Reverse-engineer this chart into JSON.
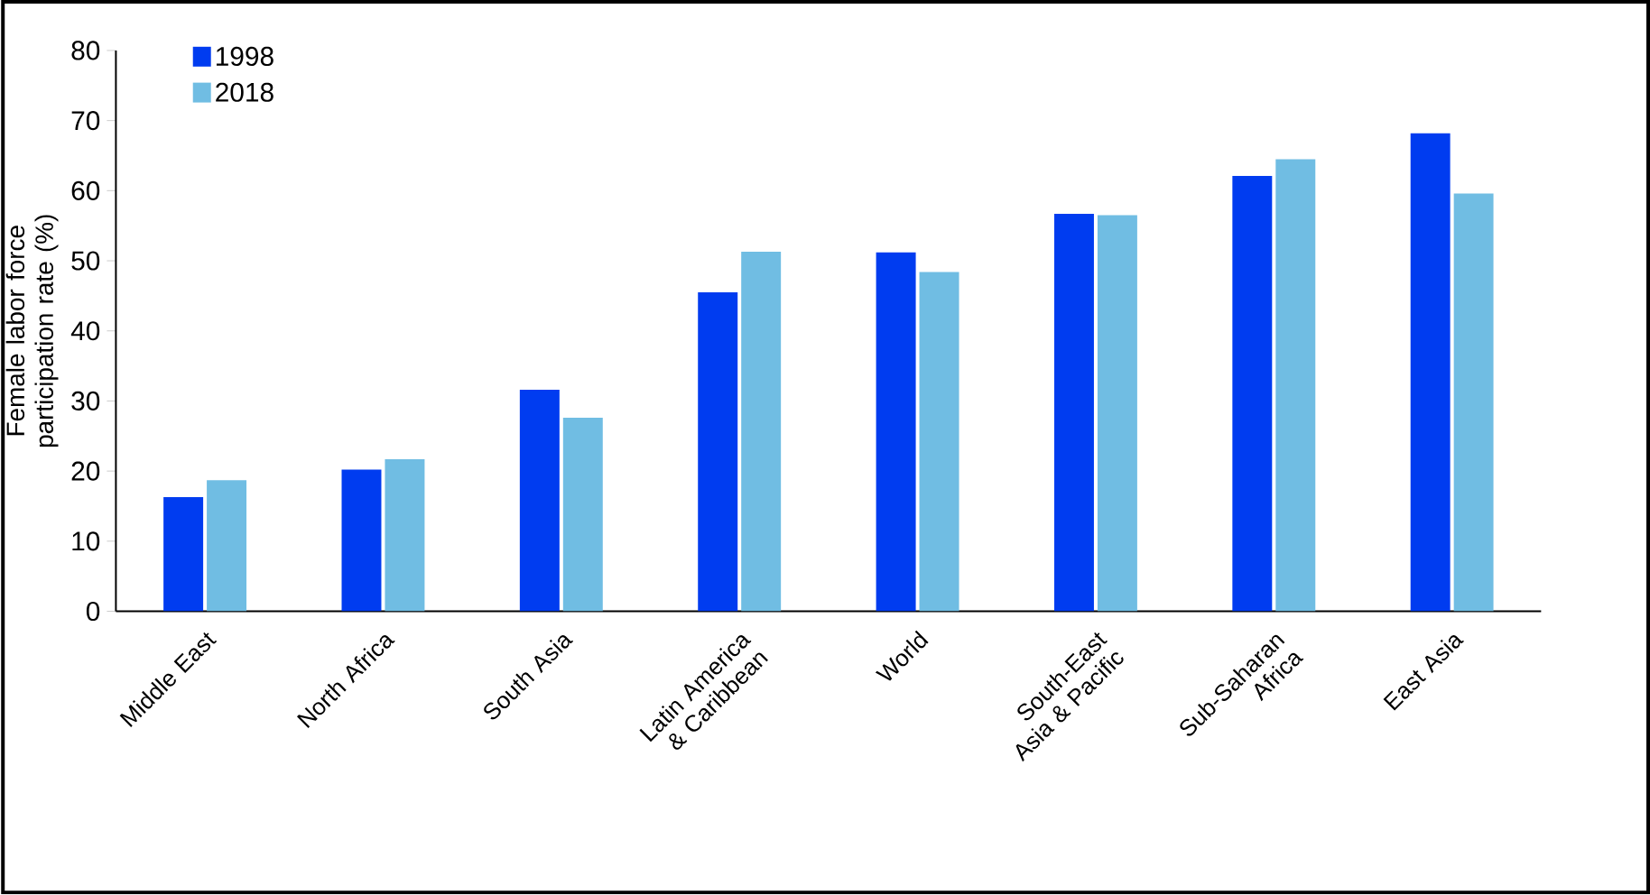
{
  "chart_data": {
    "type": "bar",
    "ylabel": "Female labor force participation rate (%)",
    "categories": [
      "Middle East",
      "North Africa",
      "South Asia",
      "Latin America & Caribbean",
      "World",
      "South-East Asia & Pacific",
      "Sub-Saharan Africa",
      "East Asia"
    ],
    "series": [
      {
        "name": "1998",
        "color": "#003cf0",
        "values": [
          16.3,
          20.2,
          31.6,
          45.5,
          51.2,
          56.7,
          62.1,
          68.2
        ]
      },
      {
        "name": "2018",
        "color": "#70bde3",
        "values": [
          18.7,
          21.7,
          27.6,
          51.3,
          48.4,
          56.5,
          64.5,
          59.6
        ]
      }
    ],
    "ylim": [
      0,
      80
    ],
    "yticks": [
      0,
      10,
      20,
      30,
      40,
      50,
      60,
      70,
      80
    ],
    "grid": false,
    "legend": "top left"
  }
}
